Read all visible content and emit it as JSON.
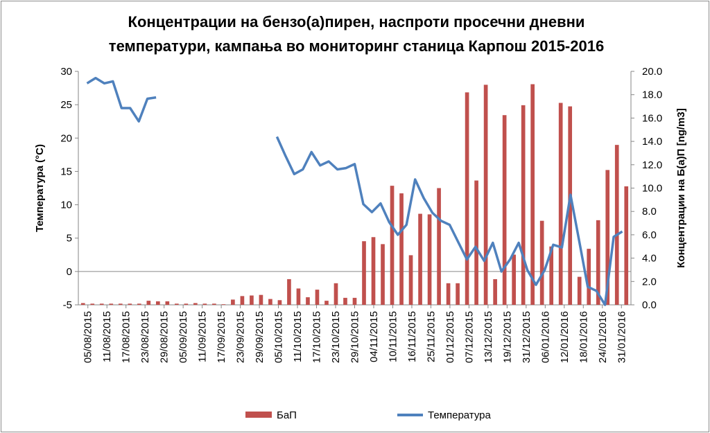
{
  "colors": {
    "bar": "#c0504d",
    "line": "#4f81bd",
    "axis": "#868686",
    "grid": "#868686"
  },
  "chart_data": {
    "type": "bar+line",
    "title_line1": "Концентрации на бензо(а)пирен, наспроти просечни дневни",
    "title_line2": "температури, кампања во мониторинг станица Карпош 2015-2016",
    "ylabel_left": "Температура (°C)",
    "ylabel_right": "Концентрации на Б(а)П [ng/m3]",
    "ylim_left": [
      -5,
      30
    ],
    "yticks_left": [
      "30",
      "25",
      "20",
      "15",
      "10",
      "5",
      "0",
      "-5"
    ],
    "ylim_right": [
      0,
      20
    ],
    "yticks_right": [
      "20.0",
      "18.0",
      "16.0",
      "14.0",
      "12.0",
      "10.0",
      "8.0",
      "6.0",
      "4.0",
      "2.0",
      "0.0"
    ],
    "x_tick_labels": [
      "05/08/2015",
      "11/08/2015",
      "17/08/2015",
      "23/08/2015",
      "29/08/2015",
      "05/09/2015",
      "11/09/2015",
      "17/09/2015",
      "23/09/2015",
      "29/09/2015",
      "05/10/2015",
      "11/10/2015",
      "17/10/2015",
      "23/10/2015",
      "29/10/2015",
      "04/11/2015",
      "10/11/2015",
      "16/11/2015",
      "25/11/2015",
      "01/12/2015",
      "07/12/2015",
      "13/12/2015",
      "19/12/2015",
      "31/12/2015",
      "06/01/2016",
      "12/01/2016",
      "18/01/2016",
      "24/01/2016",
      "31/01/2016"
    ],
    "series": [
      {
        "name": "БаП",
        "kind": "bar",
        "axis": "right",
        "values": [
          0.15,
          0.1,
          0.1,
          0.1,
          0.1,
          0.1,
          0.1,
          0.35,
          0.3,
          0.3,
          0.1,
          0.1,
          0.15,
          0.1,
          0.1,
          0.05,
          0.45,
          0.75,
          0.8,
          0.85,
          0.5,
          0.4,
          2.2,
          1.4,
          0.65,
          1.3,
          0.35,
          1.85,
          0.6,
          0.6,
          5.45,
          5.8,
          5.2,
          10.2,
          9.55,
          4.25,
          7.8,
          7.75,
          10.0,
          1.85,
          1.85,
          18.2,
          10.65,
          18.85,
          2.2,
          16.25,
          4.3,
          17.1,
          18.9,
          7.2,
          5.0,
          17.3,
          17.0,
          2.4,
          4.8,
          7.25,
          11.55,
          13.7,
          10.15
        ]
      },
      {
        "name": "Температура",
        "kind": "line",
        "axis": "left",
        "values": [
          28.2,
          29,
          28.2,
          28.5,
          24.5,
          24.5,
          22.5,
          25.9,
          26.1,
          null,
          null,
          null,
          null,
          null,
          null,
          null,
          null,
          null,
          null,
          null,
          null,
          null,
          20.2,
          17.3,
          14.6,
          15.3,
          17.9,
          15.9,
          16.5,
          15.3,
          15.5,
          16.1,
          10.1,
          8.9,
          10.2,
          7.4,
          5.5,
          7,
          13.8,
          11,
          8.8,
          7.6,
          7,
          4.4,
          1.8,
          3.7,
          1.6,
          4.3,
          0,
          1.8,
          4.3,
          0.2,
          -2,
          0.2,
          4,
          3.6,
          11.5,
          4.6,
          -2.3,
          -2.9,
          -5,
          5.2,
          6
        ],
        "x_offset": -22
      }
    ],
    "legend": [
      "БаП",
      "Температура"
    ],
    "legend_position": "bottom",
    "grid": false
  }
}
